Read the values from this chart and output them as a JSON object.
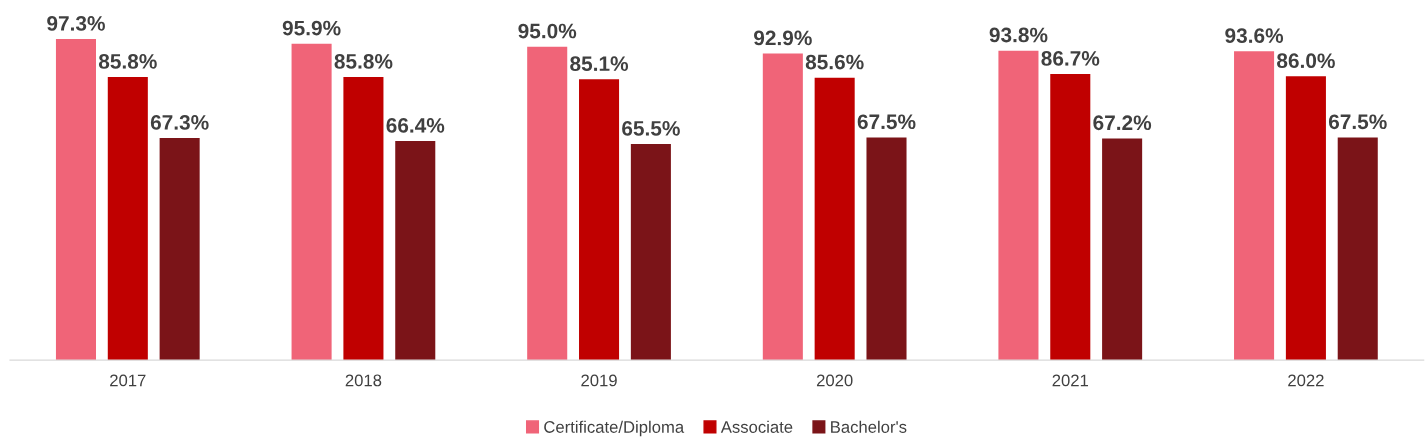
{
  "chart_data": {
    "type": "bar",
    "categories": [
      "2017",
      "2018",
      "2019",
      "2020",
      "2021",
      "2022"
    ],
    "series": [
      {
        "name": "Certificate/Diploma",
        "color": "#f06478",
        "values": [
          97.3,
          95.9,
          95.0,
          92.9,
          93.8,
          93.6
        ],
        "value_labels": [
          "97.3%",
          "95.9%",
          "95.0%",
          "92.9%",
          "93.8%",
          "93.6%"
        ]
      },
      {
        "name": "Associate",
        "color": "#c00000",
        "values": [
          85.8,
          85.8,
          85.1,
          85.6,
          86.7,
          86.0
        ],
        "value_labels": [
          "85.8%",
          "85.8%",
          "85.1%",
          "85.6%",
          "86.7%",
          "86.0%"
        ]
      },
      {
        "name": "Bachelor's",
        "color": "#7b1418",
        "values": [
          67.3,
          66.4,
          65.5,
          67.5,
          67.2,
          67.5
        ],
        "value_labels": [
          "67.3%",
          "66.4%",
          "65.5%",
          "67.5%",
          "67.2%",
          "67.5%"
        ]
      }
    ],
    "tick_labels": "x",
    "grid": false,
    "legend": "bottom"
  }
}
